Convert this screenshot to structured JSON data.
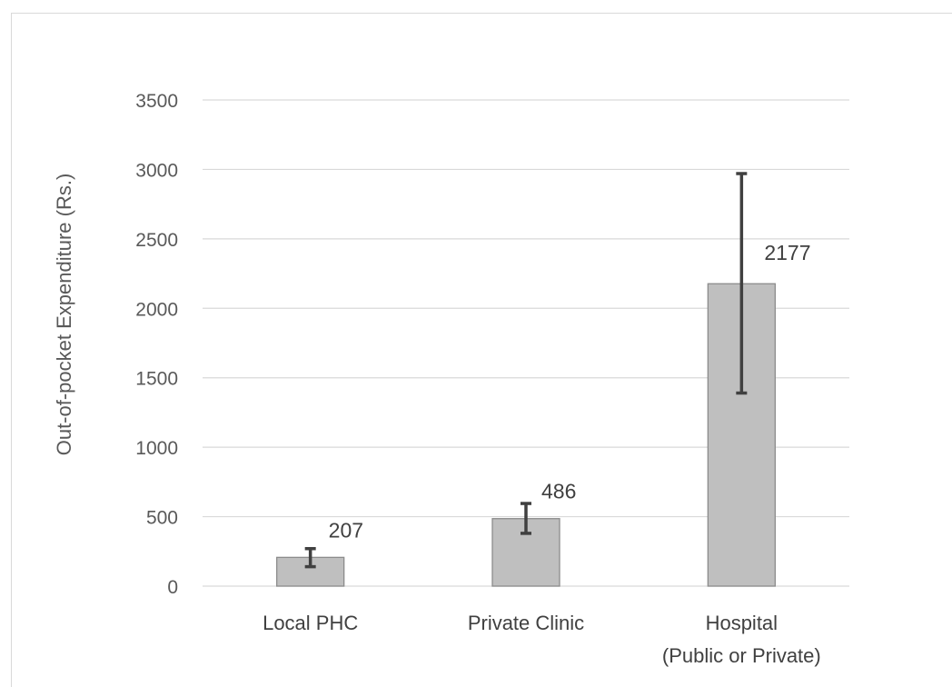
{
  "chart_data": {
    "type": "bar",
    "ylabel": "Out-of-pocket Expenditure (Rs.)",
    "ylim": [
      0,
      3500
    ],
    "yticks": [
      0,
      500,
      1000,
      1500,
      2000,
      2500,
      3000,
      3500
    ],
    "grid": true,
    "categories": [
      [
        "Local PHC"
      ],
      [
        "Private Clinic"
      ],
      [
        "Hospital",
        "(Public or Private)"
      ]
    ],
    "values": [
      207,
      486,
      2177
    ],
    "data_labels": [
      "207",
      "486",
      "2177"
    ],
    "error_bars": [
      {
        "low": 140,
        "high": 270
      },
      {
        "low": 380,
        "high": 595
      },
      {
        "low": 1390,
        "high": 2970
      }
    ],
    "colors": {
      "bar": "#bfbfbf",
      "bar_edge": "#8c8c8c",
      "error": "#404040",
      "grid": "#d9d9d9"
    }
  }
}
